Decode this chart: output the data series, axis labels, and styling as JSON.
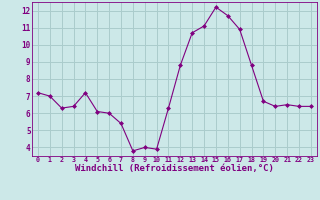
{
  "x": [
    0,
    1,
    2,
    3,
    4,
    5,
    6,
    7,
    8,
    9,
    10,
    11,
    12,
    13,
    14,
    15,
    16,
    17,
    18,
    19,
    20,
    21,
    22,
    23
  ],
  "y": [
    7.2,
    7.0,
    6.3,
    6.4,
    7.2,
    6.1,
    6.0,
    5.4,
    3.8,
    4.0,
    3.9,
    6.3,
    8.8,
    10.7,
    11.1,
    12.2,
    11.7,
    10.9,
    8.8,
    6.7,
    6.4,
    6.5,
    6.4,
    6.4
  ],
  "line_color": "#800080",
  "marker": "D",
  "marker_size": 2.0,
  "bg_color": "#cce8e8",
  "grid_color": "#aacccc",
  "xlabel": "Windchill (Refroidissement éolien,°C)",
  "xlabel_fontsize": 6.5,
  "ylabel_ticks": [
    4,
    5,
    6,
    7,
    8,
    9,
    10,
    11,
    12
  ],
  "xlim": [
    -0.5,
    23.5
  ],
  "ylim": [
    3.5,
    12.5
  ],
  "xtick_labels": [
    "0",
    "1",
    "2",
    "3",
    "4",
    "5",
    "6",
    "7",
    "8",
    "9",
    "10",
    "11",
    "12",
    "13",
    "14",
    "15",
    "16",
    "17",
    "18",
    "19",
    "20",
    "21",
    "22",
    "23"
  ]
}
